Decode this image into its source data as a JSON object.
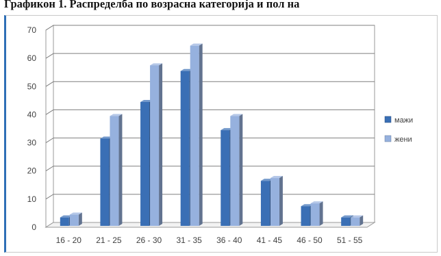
{
  "page": {
    "title": "Графикон 1. Распределба по возрасна категорија и пол на"
  },
  "chart_data": {
    "type": "bar",
    "style": "3d-clustered-column",
    "title": "",
    "xlabel": "",
    "ylabel": "",
    "ylim": [
      0,
      70
    ],
    "ytick_step": 10,
    "ytick_labels": [
      "0",
      "10",
      "20",
      "30",
      "40",
      "50",
      "60",
      "70"
    ],
    "grid": true,
    "legend_position": "right",
    "categories": [
      "16 - 20",
      "21 - 25",
      "26 - 30",
      "31 - 35",
      "36 - 40",
      "41 - 45",
      "46 - 50",
      "51 - 55"
    ],
    "series": [
      {
        "name": "мажи",
        "color": "#3a6fb5",
        "values": [
          3,
          31,
          44,
          55,
          34,
          16,
          7,
          3
        ]
      },
      {
        "name": "жени",
        "color": "#96b1de",
        "values": [
          4,
          39,
          57,
          64,
          39,
          17,
          8,
          3
        ]
      }
    ]
  }
}
